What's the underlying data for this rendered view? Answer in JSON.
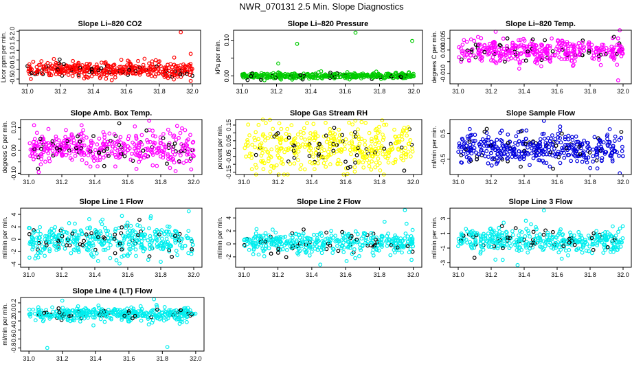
{
  "page_title": "NWR_070131  2.5 Min. Slope Diagnostics",
  "chart_data": [
    {
      "type": "scatter",
      "title": "Slope Li–820 CO2",
      "ylabel": "Licor ppm per min.",
      "xlim": [
        30.95,
        32.05
      ],
      "ylim": [
        -0.75,
        2.05
      ],
      "xticks": [
        31.0,
        31.2,
        31.4,
        31.6,
        31.8,
        32.0
      ],
      "yticks": [
        -0.5,
        0.0,
        0.5,
        1.0,
        1.5,
        2.0
      ],
      "ytick_labels": [
        "-0.5",
        "0.0",
        "0.5",
        "1.0",
        "1.5",
        "2.0"
      ],
      "color": "#ff0000",
      "n": 420,
      "center": 0.0,
      "spread": 0.18,
      "outliers": [
        [
          31.93,
          1.95
        ],
        [
          31.89,
          0.62
        ],
        [
          31.71,
          0.56
        ],
        [
          31.99,
          0.82
        ],
        [
          31.16,
          0.55
        ],
        [
          31.99,
          -0.6
        ],
        [
          31.44,
          -0.45
        ]
      ]
    },
    {
      "type": "scatter",
      "title": "Slope Li–820 Pressure",
      "ylabel": "kPa per min.",
      "xlim": [
        30.95,
        32.05
      ],
      "ylim": [
        -0.022,
        0.128
      ],
      "xticks": [
        31.0,
        31.2,
        31.4,
        31.6,
        31.8,
        32.0
      ],
      "yticks": [
        0.0,
        0.05,
        0.1
      ],
      "ytick_labels": [
        "0.00",
        "",
        "0.10"
      ],
      "color": "#00cc00",
      "n": 420,
      "center": 0.0,
      "spread": 0.004,
      "outliers": [
        [
          31.32,
          0.09
        ],
        [
          31.66,
          0.121
        ],
        [
          31.99,
          0.098
        ],
        [
          31.21,
          0.035
        ],
        [
          31.46,
          0.013
        ],
        [
          31.13,
          -0.012
        ]
      ]
    },
    {
      "type": "scatter",
      "title": "Slope Li–820 Temp.",
      "ylabel": "degrees C per min.",
      "xlim": [
        30.95,
        32.05
      ],
      "ylim": [
        -0.0145,
        0.0085
      ],
      "xticks": [
        31.0,
        31.2,
        31.4,
        31.6,
        31.8,
        32.0
      ],
      "yticks": [
        -0.01,
        -0.005,
        0.0,
        0.005
      ],
      "ytick_labels": [
        "-0.010",
        "",
        "0.000",
        "0.005"
      ],
      "color": "#ff00ff",
      "n": 420,
      "center": -0.0005,
      "spread": 0.0025,
      "outliers": [
        [
          31.97,
          -0.013
        ],
        [
          31.98,
          0.0085
        ],
        [
          31.37,
          -0.008
        ]
      ]
    },
    {
      "type": "scatter",
      "title": "Slope Amb. Box Temp.",
      "ylabel": "degrees C per min.",
      "xlim": [
        30.95,
        32.05
      ],
      "ylim": [
        -0.105,
        0.135
      ],
      "xticks": [
        31.0,
        31.2,
        31.4,
        31.6,
        31.8,
        32.0
      ],
      "yticks": [
        -0.1,
        -0.05,
        0.0,
        0.05,
        0.1
      ],
      "ytick_labels": [
        "-0.10",
        "",
        "0.00",
        "",
        "0.10"
      ],
      "color": "#ff00ff",
      "n": 420,
      "center": 0.01,
      "spread": 0.035,
      "outliers": [
        [
          31.73,
          0.13
        ],
        [
          31.06,
          -0.095
        ],
        [
          31.89,
          -0.09
        ],
        [
          31.32,
          0.11
        ]
      ]
    },
    {
      "type": "scatter",
      "title": "Slope Gas Stream RH",
      "ylabel": "percent per min.",
      "xlim": [
        30.95,
        32.05
      ],
      "ylim": [
        -0.165,
        0.185
      ],
      "xticks": [
        31.0,
        31.2,
        31.4,
        31.6,
        31.8,
        32.0
      ],
      "yticks": [
        -0.15,
        -0.1,
        -0.05,
        0.0,
        0.05,
        0.1,
        0.15
      ],
      "ytick_labels": [
        "-0.15",
        "",
        "-0.05",
        "",
        "0.05",
        "",
        "0.15"
      ],
      "color": "#ffff00",
      "n": 420,
      "center": 0.0,
      "spread": 0.075,
      "outliers": []
    },
    {
      "type": "scatter",
      "title": "Slope Sample Flow",
      "ylabel": "ml/min per min.",
      "xlim": [
        30.95,
        32.05
      ],
      "ylim": [
        -1.1,
        1.05
      ],
      "xticks": [
        31.0,
        31.2,
        31.4,
        31.6,
        31.8,
        32.0
      ],
      "yticks": [
        -0.5,
        0.5
      ],
      "ytick_labels": [
        "-0.5",
        "0.5"
      ],
      "color": "#0000dd",
      "n": 420,
      "center": -0.05,
      "spread": 0.3,
      "outliers": [
        [
          31.52,
          1.0
        ],
        [
          31.98,
          -1.05
        ],
        [
          31.07,
          0.68
        ]
      ]
    },
    {
      "type": "scatter",
      "title": "Slope Line 1 Flow",
      "ylabel": "ml/min per min.",
      "xlim": [
        30.95,
        32.05
      ],
      "ylim": [
        -4.5,
        5.0
      ],
      "xticks": [
        31.0,
        31.2,
        31.4,
        31.6,
        31.8,
        32.0
      ],
      "yticks": [
        -4,
        -2,
        0,
        2,
        4
      ],
      "ytick_labels": [
        "-4",
        "-2",
        "0",
        "2",
        "4"
      ],
      "color": "#00eeee",
      "n": 420,
      "center": -0.1,
      "spread": 1.2,
      "outliers": [
        [
          31.97,
          4.5
        ],
        [
          31.55,
          -3.9
        ],
        [
          31.42,
          -3.5
        ],
        [
          31.74,
          3.7
        ]
      ]
    },
    {
      "type": "scatter",
      "title": "Slope Line 2 Flow",
      "ylabel": "ml/min per min.",
      "xlim": [
        30.95,
        32.05
      ],
      "ylim": [
        -3.6,
        5.5
      ],
      "xticks": [
        31.0,
        31.2,
        31.4,
        31.6,
        31.8,
        32.0
      ],
      "yticks": [
        -2,
        0,
        2,
        4
      ],
      "ytick_labels": [
        "-2",
        "0",
        "2",
        "4"
      ],
      "color": "#00eeee",
      "n": 420,
      "center": 0.2,
      "spread": 0.9,
      "outliers": [
        [
          31.95,
          5.2
        ],
        [
          31.83,
          3.4
        ],
        [
          31.45,
          -3.2
        ],
        [
          31.96,
          3.1
        ]
      ]
    },
    {
      "type": "scatter",
      "title": "Slope Line 3 Flow",
      "ylabel": "ml/min per min.",
      "xlim": [
        30.95,
        32.05
      ],
      "ylim": [
        -3.6,
        4.4
      ],
      "xticks": [
        31.0,
        31.2,
        31.4,
        31.6,
        31.8,
        32.0
      ],
      "yticks": [
        -3,
        -1,
        1,
        3
      ],
      "ytick_labels": [
        "-3",
        "-1",
        "1",
        "3"
      ],
      "color": "#00eeee",
      "n": 420,
      "center": 0.0,
      "spread": 0.8,
      "outliers": [
        [
          31.36,
          -3.3
        ],
        [
          31.52,
          4.1
        ],
        [
          31.27,
          -2.6
        ]
      ]
    },
    {
      "type": "scatter",
      "title": "Slope Line 4 (LT) Flow",
      "ylabel": "ml/min per min.",
      "xlim": [
        30.95,
        32.05
      ],
      "ylim": [
        -0.87,
        0.32
      ],
      "xticks": [
        31.0,
        31.2,
        31.4,
        31.6,
        31.8,
        32.0
      ],
      "yticks": [
        -0.8,
        -0.6,
        -0.4,
        -0.2,
        0.0,
        0.2
      ],
      "ytick_labels": [
        "-0.8",
        "-0.6",
        "-0.4",
        "-0.2",
        "0.0",
        "0.2"
      ],
      "color": "#00eeee",
      "n": 420,
      "center": -0.05,
      "spread": 0.075,
      "outliers": [
        [
          31.11,
          -0.8
        ],
        [
          31.83,
          -0.78
        ],
        [
          31.75,
          0.28
        ],
        [
          31.2,
          0.25
        ]
      ]
    }
  ]
}
